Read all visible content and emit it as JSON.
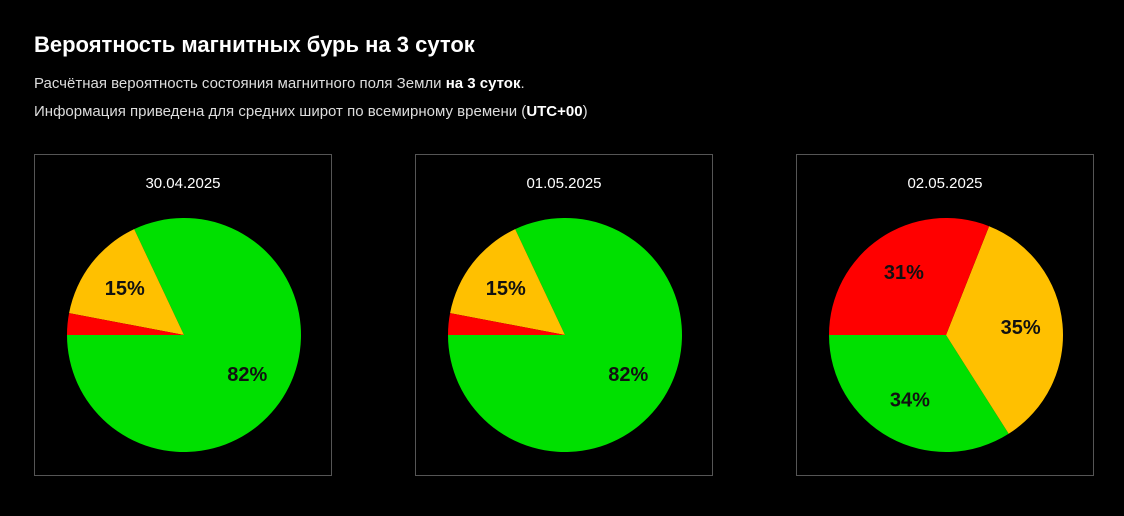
{
  "page": {
    "title": "Вероятность магнитных бурь на 3 суток",
    "desc1_pre": "Расчётная вероятность состояния магнитного поля Земли ",
    "desc1_bold": "на 3 суток",
    "desc1_post": ".",
    "desc2_pre": "Информация приведена для средних широт по всемирному времени (",
    "desc2_bold": "UTC+00",
    "desc2_post": ")"
  },
  "colors": {
    "green": "#00e000",
    "yellow": "#ffc000",
    "red": "#ff0000"
  },
  "chart_data": [
    {
      "type": "pie",
      "title": "30.04.2025",
      "slices": [
        {
          "color": "green",
          "value": 82,
          "label": "82%"
        },
        {
          "color": "yellow",
          "value": 15,
          "label": "15%"
        },
        {
          "color": "red",
          "value": 3,
          "label": ""
        }
      ]
    },
    {
      "type": "pie",
      "title": "01.05.2025",
      "slices": [
        {
          "color": "green",
          "value": 82,
          "label": "82%"
        },
        {
          "color": "yellow",
          "value": 15,
          "label": "15%"
        },
        {
          "color": "red",
          "value": 3,
          "label": ""
        }
      ]
    },
    {
      "type": "pie",
      "title": "02.05.2025",
      "slices": [
        {
          "color": "green",
          "value": 34,
          "label": "34%"
        },
        {
          "color": "yellow",
          "value": 35,
          "label": "35%"
        },
        {
          "color": "red",
          "value": 31,
          "label": "31%"
        }
      ]
    }
  ]
}
